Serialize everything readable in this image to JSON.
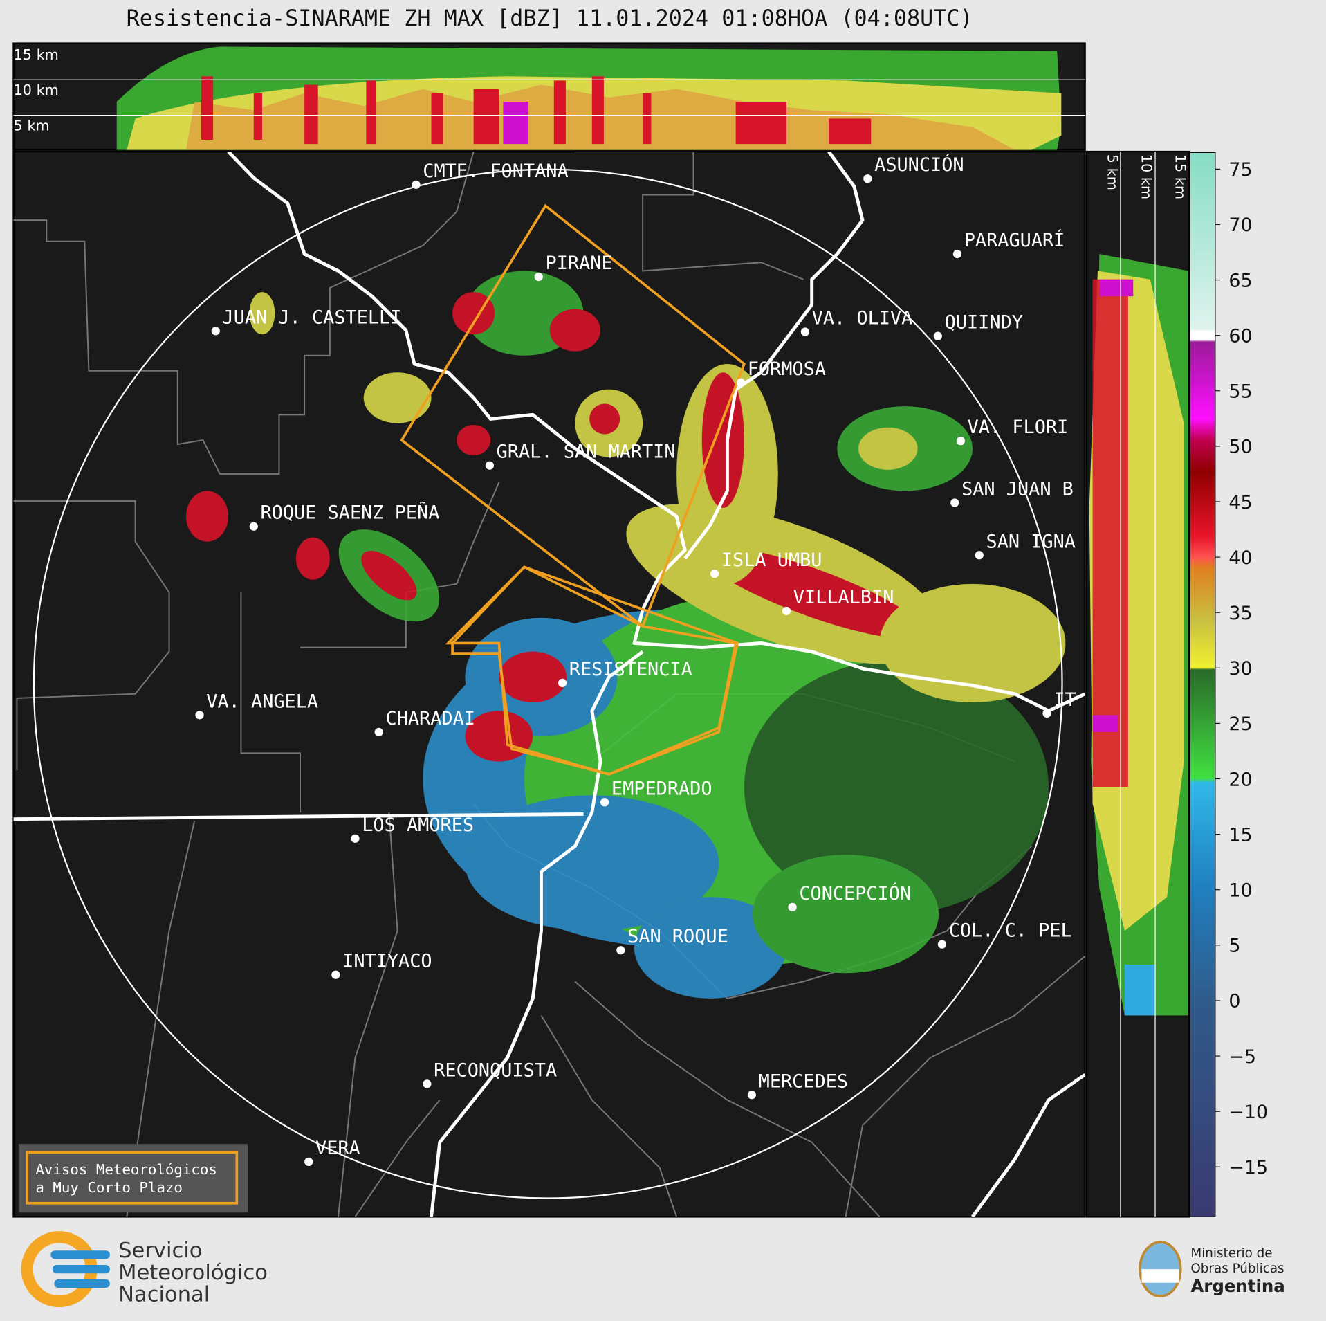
{
  "title": "Resistencia-SINARAME ZH MAX [dBZ] 11.01.2024 01:08HOA (04:08UTC)",
  "top_height_labels": [
    "15 km",
    "10 km",
    "5 km"
  ],
  "side_height_labels": [
    "5 km",
    "10 km",
    "15 km"
  ],
  "cities": [
    "CMTE. FONTANA",
    "ASUNCIÓN",
    "PIRANE",
    "PARAGUARÍ",
    "JUAN J. CASTELLI",
    "VA. OLIVA",
    "QUIINDY",
    "FORMOSA",
    "VA. FLORI",
    "GRAL. SAN MARTIN",
    "SAN JUAN B",
    "ROQUE SAENZ PEÑA",
    "SAN IGNA",
    "ISLA UMBU",
    "VILLALBIN",
    "RESISTENCIA",
    "VA. ANGELA",
    "CHARADAI",
    "IT",
    "EMPEDRADO",
    "LOS AMORES",
    "CONCEPCIÓN",
    "COL. C. PEL",
    "SAN ROQUE",
    "INTIYACO",
    "RECONQUISTA",
    "MERCEDES",
    "VERA"
  ],
  "colorbar": {
    "lim": [
      -19.5,
      76.5
    ],
    "ticks": [
      {
        "value": -15,
        "label": "−15"
      },
      {
        "value": -10,
        "label": "−10"
      },
      {
        "value": -5,
        "label": "−5"
      },
      0,
      5,
      10,
      15,
      20,
      25,
      30,
      35,
      40,
      45,
      50,
      55,
      60,
      65,
      70,
      75
    ]
  },
  "warning_legend": [
    "Avisos Meteorológicos",
    "a Muy Corto Plazo"
  ],
  "footer": {
    "smn": [
      "Servicio",
      "Meteorológico",
      "Nacional"
    ],
    "ministry": [
      "Ministerio de",
      "Obras Públicas",
      "Argentina"
    ]
  }
}
